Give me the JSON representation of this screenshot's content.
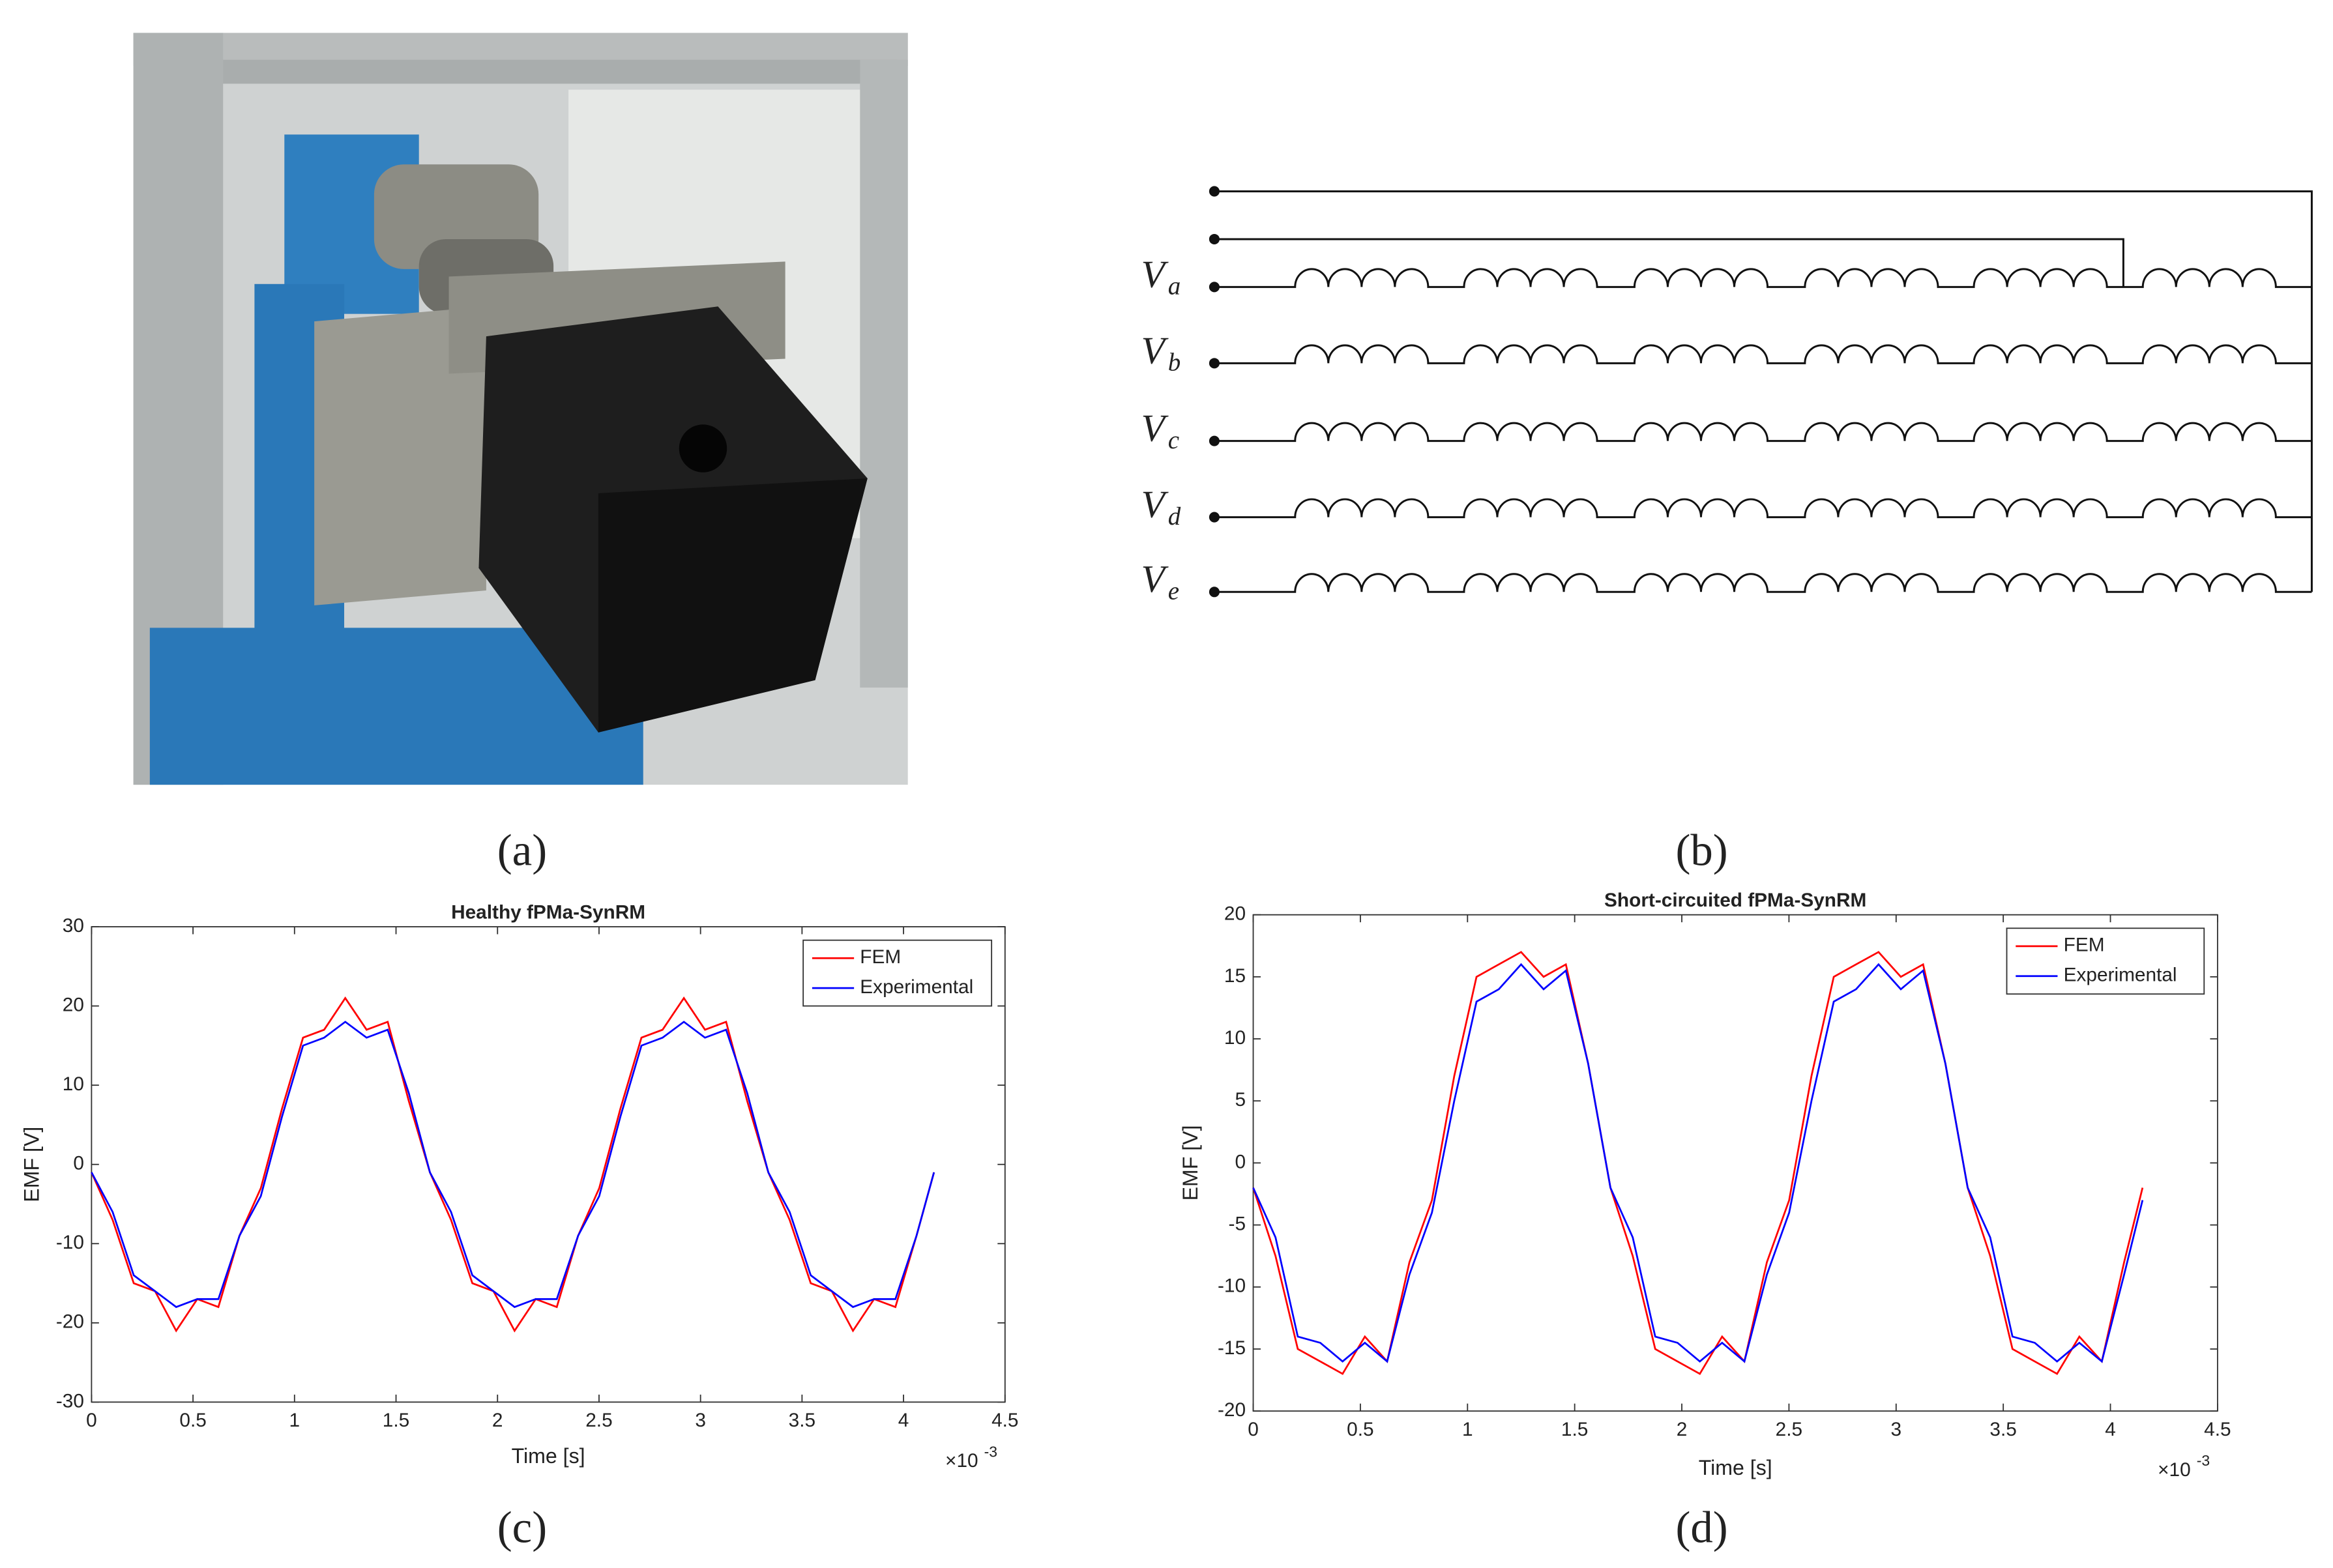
{
  "figure": {
    "captions": [
      "(a)",
      "(b)",
      "(c)",
      "(d)"
    ]
  },
  "circuit": {
    "labels": [
      {
        "main": "V",
        "sub": "a"
      },
      {
        "main": "V",
        "sub": "b"
      },
      {
        "main": "V",
        "sub": "c"
      },
      {
        "main": "V",
        "sub": "d"
      },
      {
        "main": "V",
        "sub": "e"
      }
    ]
  },
  "chart_data": [
    {
      "type": "line",
      "title": "Healthy fPMa-SynRM",
      "x_label": "Time [s]",
      "y_label": "EMF [V]",
      "x_multiplier": {
        "base": "×10",
        "exponent": "-3"
      },
      "x": [
        0,
        0.104,
        0.208,
        0.313,
        0.417,
        0.521,
        0.625,
        0.729,
        0.834,
        0.938,
        1.042,
        1.146,
        1.25,
        1.355,
        1.459,
        1.563,
        1.667,
        1.771,
        1.876,
        1.98,
        2.084,
        2.188,
        2.292,
        2.397,
        2.501,
        2.605,
        2.709,
        2.813,
        2.918,
        3.022,
        3.126,
        3.23,
        3.334,
        3.439,
        3.543,
        3.647,
        3.751,
        3.855,
        3.96,
        4.064,
        4.15
      ],
      "series": [
        {
          "name": "FEM",
          "color": "#ff0000",
          "values": [
            -1,
            -7,
            -15,
            -16,
            -21,
            -17,
            -18,
            -9,
            -3,
            7,
            16,
            17,
            21,
            17,
            18,
            8,
            -1,
            -7,
            -15,
            -16,
            -21,
            -17,
            -18,
            -9,
            -3,
            7,
            16,
            17,
            21,
            17,
            18,
            8,
            -1,
            -7,
            -15,
            -16,
            -21,
            -17,
            -18,
            -9,
            -1
          ]
        },
        {
          "name": "Experimental",
          "color": "#0000ff",
          "values": [
            -1,
            -6,
            -14,
            -16,
            -18,
            -17,
            -17,
            -9,
            -4,
            6,
            15,
            16,
            18,
            16,
            17,
            9,
            -1,
            -6,
            -14,
            -16,
            -18,
            -17,
            -17,
            -9,
            -4,
            6,
            15,
            16,
            18,
            16,
            17,
            9,
            -1,
            -6,
            -14,
            -16,
            -18,
            -17,
            -17,
            -9,
            -1
          ]
        }
      ],
      "xlim": [
        0,
        4.5
      ],
      "xticks": [
        0,
        0.5,
        1,
        1.5,
        2,
        2.5,
        3,
        3.5,
        4,
        4.5
      ],
      "ylim": [
        -30,
        30
      ],
      "yticks": [
        -30,
        -20,
        -10,
        0,
        10,
        20,
        30
      ],
      "grid": false,
      "legend": "upper right"
    },
    {
      "type": "line",
      "title": "Short-circuited fPMa-SynRM",
      "x_label": "Time [s]",
      "y_label": "EMF [V]",
      "x_multiplier": {
        "base": "×10",
        "exponent": "-3"
      },
      "x": [
        0,
        0.104,
        0.208,
        0.313,
        0.417,
        0.521,
        0.625,
        0.729,
        0.834,
        0.938,
        1.042,
        1.146,
        1.25,
        1.355,
        1.459,
        1.563,
        1.667,
        1.771,
        1.876,
        1.98,
        2.084,
        2.188,
        2.292,
        2.397,
        2.501,
        2.605,
        2.709,
        2.813,
        2.918,
        3.022,
        3.126,
        3.23,
        3.334,
        3.439,
        3.543,
        3.647,
        3.751,
        3.855,
        3.96,
        4.064,
        4.15
      ],
      "series": [
        {
          "name": "FEM",
          "color": "#ff0000",
          "values": [
            -2,
            -7.5,
            -15,
            -16,
            -17,
            -14,
            -16,
            -8,
            -3,
            7,
            15,
            16,
            17,
            15,
            16,
            8,
            -2,
            -7.5,
            -15,
            -16,
            -17,
            -14,
            -16,
            -8,
            -3,
            7,
            15,
            16,
            17,
            15,
            16,
            8,
            -2,
            -7.5,
            -15,
            -16,
            -17,
            -14,
            -16,
            -8,
            -2
          ]
        },
        {
          "name": "Experimental",
          "color": "#0000ff",
          "values": [
            -2,
            -6,
            -14,
            -14.5,
            -16,
            -14.5,
            -16,
            -9,
            -4,
            5,
            13,
            14,
            16,
            14,
            15.5,
            8,
            -2,
            -6,
            -14,
            -14.5,
            -16,
            -14.5,
            -16,
            -9,
            -4,
            5,
            13,
            14,
            16,
            14,
            15.5,
            8,
            -2,
            -6,
            -14,
            -14.5,
            -16,
            -14.5,
            -16,
            -9,
            -3
          ]
        }
      ],
      "xlim": [
        0,
        4.5
      ],
      "xticks": [
        0,
        0.5,
        1,
        1.5,
        2,
        2.5,
        3,
        3.5,
        4,
        4.5
      ],
      "ylim": [
        -20,
        20
      ],
      "yticks": [
        -20,
        -15,
        -10,
        -5,
        0,
        5,
        10,
        15,
        20
      ],
      "grid": false,
      "legend": "upper right"
    }
  ]
}
